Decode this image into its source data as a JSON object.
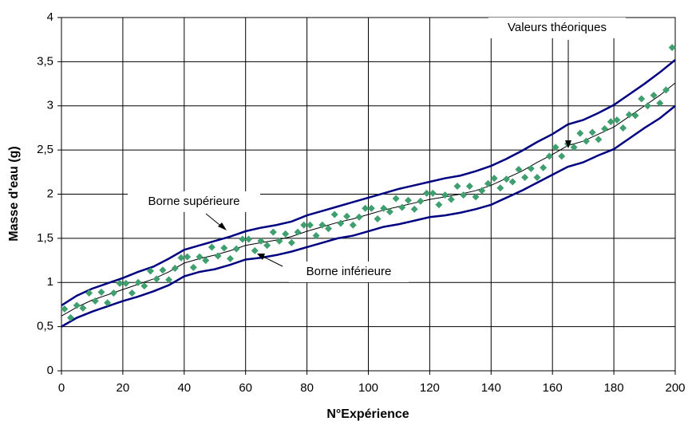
{
  "chart_data": {
    "type": "line",
    "x_label": "N°Expérience",
    "y_label": "Masse d'eau (g)",
    "xlim": [
      0,
      200
    ],
    "ylim": [
      0,
      4
    ],
    "xticks": [
      0,
      20,
      40,
      60,
      80,
      100,
      120,
      140,
      160,
      180,
      200
    ],
    "yticks": [
      0,
      {
        "value": 0.5,
        "label": "0,5"
      },
      1,
      {
        "value": 1.5,
        "label": "1,5"
      },
      2,
      {
        "value": 2.5,
        "label": "2,5"
      },
      3,
      {
        "value": 3.5,
        "label": "3,5"
      },
      4
    ],
    "grid": true,
    "annotations": [
      {
        "text": "Valeurs théoriques"
      },
      {
        "text": "Borne supérieure"
      },
      {
        "text": "Borne inférieure"
      }
    ],
    "x": [
      0,
      5,
      10,
      15,
      20,
      25,
      30,
      35,
      40,
      45,
      50,
      55,
      60,
      65,
      70,
      75,
      80,
      85,
      90,
      95,
      100,
      105,
      110,
      115,
      120,
      125,
      130,
      135,
      140,
      145,
      150,
      155,
      160,
      165,
      170,
      175,
      180,
      185,
      190,
      195,
      200
    ],
    "series": [
      {
        "type": "line",
        "color": "#000080",
        "values": [
          0.74,
          0.85,
          0.93,
          0.99,
          1.05,
          1.12,
          1.18,
          1.27,
          1.37,
          1.42,
          1.47,
          1.52,
          1.58,
          1.62,
          1.65,
          1.69,
          1.76,
          1.81,
          1.86,
          1.91,
          1.96,
          2.01,
          2.06,
          2.1,
          2.14,
          2.18,
          2.21,
          2.26,
          2.32,
          2.4,
          2.49,
          2.59,
          2.68,
          2.79,
          2.84,
          2.92,
          3.01,
          3.13,
          3.25,
          3.38,
          3.52
        ]
      },
      {
        "type": "line",
        "color": "#000080",
        "values": [
          0.5,
          0.6,
          0.67,
          0.73,
          0.79,
          0.84,
          0.9,
          0.97,
          1.07,
          1.12,
          1.15,
          1.2,
          1.26,
          1.28,
          1.31,
          1.35,
          1.4,
          1.45,
          1.5,
          1.53,
          1.58,
          1.63,
          1.66,
          1.7,
          1.74,
          1.76,
          1.79,
          1.83,
          1.88,
          1.96,
          2.04,
          2.13,
          2.22,
          2.31,
          2.36,
          2.44,
          2.51,
          2.63,
          2.75,
          2.86,
          3.0
        ]
      },
      {
        "type": "line",
        "color": "#000000",
        "values": [
          0.62,
          0.72,
          0.8,
          0.86,
          0.92,
          0.98,
          1.04,
          1.12,
          1.22,
          1.27,
          1.31,
          1.36,
          1.42,
          1.45,
          1.48,
          1.52,
          1.58,
          1.63,
          1.68,
          1.72,
          1.77,
          1.82,
          1.86,
          1.9,
          1.94,
          1.97,
          2.0,
          2.04,
          2.1,
          2.18,
          2.26,
          2.36,
          2.45,
          2.55,
          2.6,
          2.68,
          2.76,
          2.88,
          3.0,
          3.12,
          3.26
        ]
      },
      {
        "type": "scatter",
        "color": "#3f9f6f",
        "x": [
          1,
          3,
          5,
          7,
          9,
          11,
          13,
          15,
          17,
          19,
          21,
          23,
          25,
          27,
          29,
          31,
          33,
          35,
          37,
          39,
          41,
          43,
          45,
          47,
          49,
          51,
          53,
          55,
          57,
          59,
          61,
          63,
          65,
          67,
          69,
          71,
          73,
          75,
          77,
          79,
          81,
          83,
          85,
          87,
          89,
          91,
          93,
          95,
          97,
          99,
          101,
          103,
          105,
          107,
          109,
          111,
          113,
          115,
          117,
          119,
          121,
          123,
          125,
          127,
          129,
          131,
          133,
          135,
          137,
          139,
          141,
          143,
          145,
          147,
          149,
          151,
          153,
          155,
          157,
          159,
          161,
          163,
          165,
          167,
          169,
          171,
          173,
          175,
          177,
          179,
          181,
          183,
          185,
          187,
          189,
          191,
          193,
          195,
          197,
          199
        ],
        "values": [
          0.7,
          0.6,
          0.74,
          0.71,
          0.88,
          0.79,
          0.89,
          0.77,
          0.88,
          0.99,
          0.99,
          0.88,
          1.0,
          0.96,
          1.13,
          1.04,
          1.14,
          1.03,
          1.16,
          1.28,
          1.29,
          1.17,
          1.29,
          1.25,
          1.4,
          1.3,
          1.39,
          1.27,
          1.38,
          1.49,
          1.49,
          1.36,
          1.47,
          1.42,
          1.57,
          1.47,
          1.55,
          1.45,
          1.57,
          1.65,
          1.65,
          1.53,
          1.65,
          1.61,
          1.77,
          1.67,
          1.75,
          1.65,
          1.74,
          1.84,
          1.84,
          1.72,
          1.84,
          1.8,
          1.95,
          1.85,
          1.93,
          1.83,
          1.92,
          2.01,
          2.01,
          1.88,
          1.99,
          1.94,
          2.09,
          1.99,
          2.09,
          1.97,
          2.04,
          2.12,
          2.18,
          2.07,
          2.17,
          2.14,
          2.28,
          2.19,
          2.29,
          2.19,
          2.3,
          2.43,
          2.53,
          2.43,
          2.57,
          2.53,
          2.69,
          2.6,
          2.7,
          2.62,
          2.74,
          2.82,
          2.84,
          2.75,
          2.9,
          2.89,
          3.08,
          3.0,
          3.12,
          3.03,
          3.18,
          3.66
        ]
      }
    ]
  }
}
